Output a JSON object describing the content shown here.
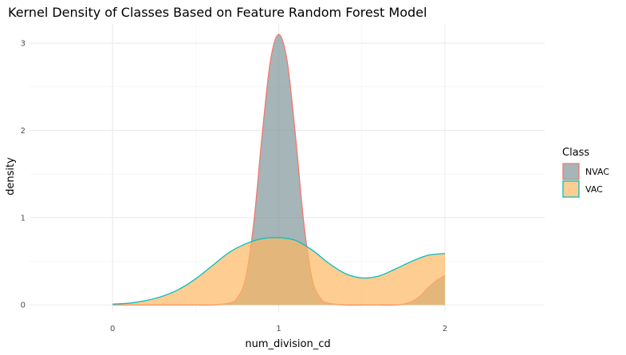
{
  "chart_data": {
    "type": "area",
    "title": "Kernel Density of Classes Based on Feature Random Forest Model",
    "xlabel": "num_division_cd",
    "ylabel": "density",
    "xlim": [
      -0.5,
      2.6
    ],
    "ylim": [
      -0.08,
      3.22
    ],
    "x_ticks": [
      0,
      1,
      2
    ],
    "x_tick_labels": [
      "0",
      "1",
      "2"
    ],
    "y_ticks": [
      0,
      1,
      2,
      3
    ],
    "y_tick_labels": [
      "0",
      "1",
      "2",
      "3"
    ],
    "grid": true,
    "legend_title": "Class",
    "legend_position": "right",
    "series": [
      {
        "name": "NVAC",
        "fill": "#7f969a",
        "stroke": "#f8766d",
        "x": [
          0.0,
          0.25,
          0.5,
          0.6,
          0.7,
          0.75,
          0.8,
          0.85,
          0.9,
          0.95,
          1.0,
          1.05,
          1.1,
          1.15,
          1.2,
          1.25,
          1.3,
          1.4,
          1.5,
          1.6,
          1.7,
          1.75,
          1.8,
          1.85,
          1.9,
          1.95,
          2.0
        ],
        "y": [
          0.0,
          0.0,
          0.0,
          0.0,
          0.02,
          0.08,
          0.3,
          0.95,
          1.95,
          2.8,
          3.1,
          2.8,
          1.95,
          0.95,
          0.3,
          0.08,
          0.02,
          0.0,
          0.0,
          0.0,
          0.0,
          0.01,
          0.04,
          0.1,
          0.2,
          0.28,
          0.34
        ]
      },
      {
        "name": "VAC",
        "fill": "#fdb863",
        "stroke": "#00bfc4",
        "x": [
          0.0,
          0.1,
          0.2,
          0.3,
          0.4,
          0.5,
          0.6,
          0.7,
          0.8,
          0.9,
          1.0,
          1.1,
          1.2,
          1.3,
          1.4,
          1.5,
          1.6,
          1.7,
          1.8,
          1.9,
          2.0
        ],
        "y": [
          0.01,
          0.02,
          0.05,
          0.1,
          0.18,
          0.3,
          0.45,
          0.6,
          0.7,
          0.76,
          0.77,
          0.74,
          0.63,
          0.48,
          0.36,
          0.31,
          0.33,
          0.41,
          0.5,
          0.57,
          0.59
        ]
      }
    ]
  }
}
